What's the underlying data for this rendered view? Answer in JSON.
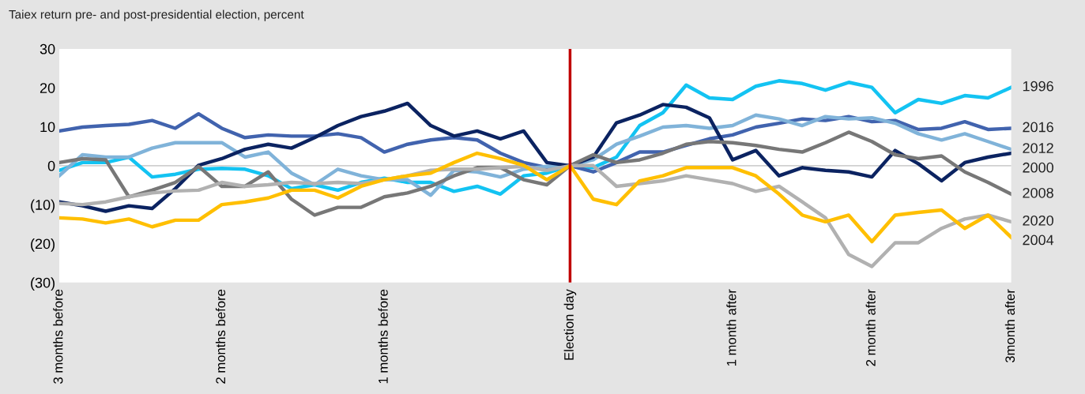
{
  "chart_data": {
    "type": "line",
    "title": "Taiex return pre- and post-presidential election, percent",
    "categories": [
      "3 months before",
      null,
      null,
      null,
      null,
      null,
      null,
      "2 months before",
      null,
      null,
      null,
      null,
      null,
      null,
      "1 months before",
      null,
      null,
      null,
      null,
      null,
      null,
      null,
      "Election day",
      null,
      null,
      null,
      null,
      null,
      null,
      "1 month after",
      null,
      null,
      null,
      null,
      null,
      "2 month after",
      null,
      null,
      null,
      null,
      null,
      "3month after"
    ],
    "ylim": [
      -30,
      30
    ],
    "yticks": [
      {
        "value": -30,
        "label": "(30)"
      },
      {
        "value": -20,
        "label": "(20)"
      },
      {
        "value": -10,
        "label": "(10)"
      },
      0,
      10,
      20,
      30
    ],
    "grid": false,
    "legend": false,
    "marker": "none",
    "line_style": "solid",
    "ref_lines": [
      {
        "axis": "y",
        "value": 0,
        "label": null,
        "color": "#d0d0d0"
      },
      {
        "axis": "x",
        "value": "Election day",
        "label": null,
        "color": "#c00000"
      }
    ],
    "series": [
      {
        "name": "1996",
        "color": "#13c3f2",
        "values": [
          -1.2,
          0.8,
          0.8,
          2.2,
          -2.9,
          -2.2,
          -0.9,
          -0.7,
          -0.9,
          -2.6,
          -5.9,
          -4.9,
          -6.3,
          -4.3,
          -3.2,
          -4.3,
          -4.3,
          -6.6,
          -5.3,
          -7.3,
          -2.6,
          -1.9,
          0,
          -0.5,
          2.2,
          10.3,
          13.6,
          20.7,
          17.4,
          17,
          20.4,
          21.8,
          21.1,
          19.4,
          21.4,
          20.1,
          13.6,
          17,
          16,
          18,
          17.4,
          20.1
        ]
      },
      {
        "name": "2016",
        "color": "#4163ae",
        "values": [
          8.9,
          9.9,
          10.3,
          10.6,
          11.6,
          9.6,
          13.3,
          9.6,
          7.2,
          7.9,
          7.6,
          7.6,
          8.2,
          7.2,
          3.5,
          5.5,
          6.6,
          7.2,
          6.6,
          3.2,
          0.8,
          -0.5,
          0,
          -1.6,
          0.8,
          3.5,
          3.5,
          5.2,
          6.9,
          7.9,
          9.9,
          10.9,
          12,
          11.6,
          12.6,
          11.3,
          11.6,
          9.3,
          9.6,
          11.3,
          9.3,
          9.6
        ]
      },
      {
        "name": "2012",
        "color": "#80b3d9",
        "values": [
          -2.6,
          2.8,
          2.2,
          2.2,
          4.5,
          5.9,
          5.9,
          5.9,
          2.2,
          3.5,
          -1.9,
          -4.9,
          -0.9,
          -2.6,
          -3.6,
          -3.6,
          -7.6,
          -1.2,
          -1.6,
          -2.9,
          -0.9,
          -0.2,
          0,
          1.5,
          5.5,
          7.6,
          9.9,
          10.3,
          9.6,
          10.3,
          13,
          12,
          10.3,
          12.6,
          12,
          12.3,
          10.9,
          8.2,
          6.6,
          8.2,
          6.2,
          4.2
        ]
      },
      {
        "name": "2000",
        "color": "#0b2361",
        "values": [
          -9.3,
          -10.3,
          -11.7,
          -10.3,
          -11,
          -5.9,
          0.1,
          1.8,
          4.2,
          5.5,
          4.5,
          7.2,
          10.3,
          12.6,
          14,
          16,
          10.3,
          7.6,
          8.9,
          6.9,
          8.9,
          0.8,
          0,
          2.2,
          11,
          13,
          15.7,
          15,
          12.3,
          1.5,
          3.9,
          -2.6,
          -0.5,
          -1.2,
          -1.6,
          -2.9,
          3.9,
          0.5,
          -3.9,
          0.8,
          2.2,
          3.2
        ]
      },
      {
        "name": "2008",
        "color": "#777777",
        "values": [
          0.8,
          1.8,
          1.5,
          -8,
          -6.3,
          -4.3,
          -0.2,
          -5.3,
          -5.3,
          -1.6,
          -8.6,
          -12.7,
          -10.7,
          -10.7,
          -8,
          -7,
          -5.3,
          -2.6,
          -0.5,
          -0.5,
          -3.6,
          -4.9,
          0,
          2.8,
          0.8,
          1.5,
          3.2,
          5.5,
          6.2,
          5.9,
          5.2,
          4.2,
          3.5,
          5.9,
          8.6,
          6.2,
          2.8,
          1.8,
          2.5,
          -1.6,
          -4.3,
          -7.3
        ]
      },
      {
        "name": "2020",
        "color": "#b1b1b1",
        "values": [
          -9.7,
          -10,
          -9.3,
          -8,
          -7,
          -6.5,
          -6.3,
          -4.3,
          -5.3,
          -4.9,
          -4.3,
          -4.6,
          -4.3,
          -4.6,
          -3.6,
          -2.6,
          -1.2,
          -0.9,
          -0.9,
          -0.5,
          -0.2,
          -1.2,
          0,
          0,
          -5.3,
          -4.6,
          -3.9,
          -2.6,
          -3.6,
          -4.6,
          -6.6,
          -5.3,
          -9.3,
          -13.4,
          -22.8,
          -25.9,
          -19.8,
          -19.8,
          -16.1,
          -13.7,
          -12.7,
          -14.4
        ]
      },
      {
        "name": "2004",
        "color": "#ffbf00",
        "values": [
          -13.4,
          -13.7,
          -14.7,
          -13.7,
          -15.7,
          -14,
          -14,
          -10,
          -9.3,
          -8.3,
          -6.3,
          -6.3,
          -8.3,
          -5.3,
          -3.6,
          -2.6,
          -1.9,
          0.8,
          3.2,
          1.8,
          0.1,
          -3.6,
          0,
          -8.6,
          -10,
          -3.9,
          -2.6,
          -0.5,
          -0.5,
          -0.5,
          -2.6,
          -7.3,
          -12.7,
          -14.4,
          -12.7,
          -19.5,
          -12.7,
          -12,
          -11.4,
          -16.1,
          -12.7,
          -18.4
        ]
      }
    ]
  }
}
